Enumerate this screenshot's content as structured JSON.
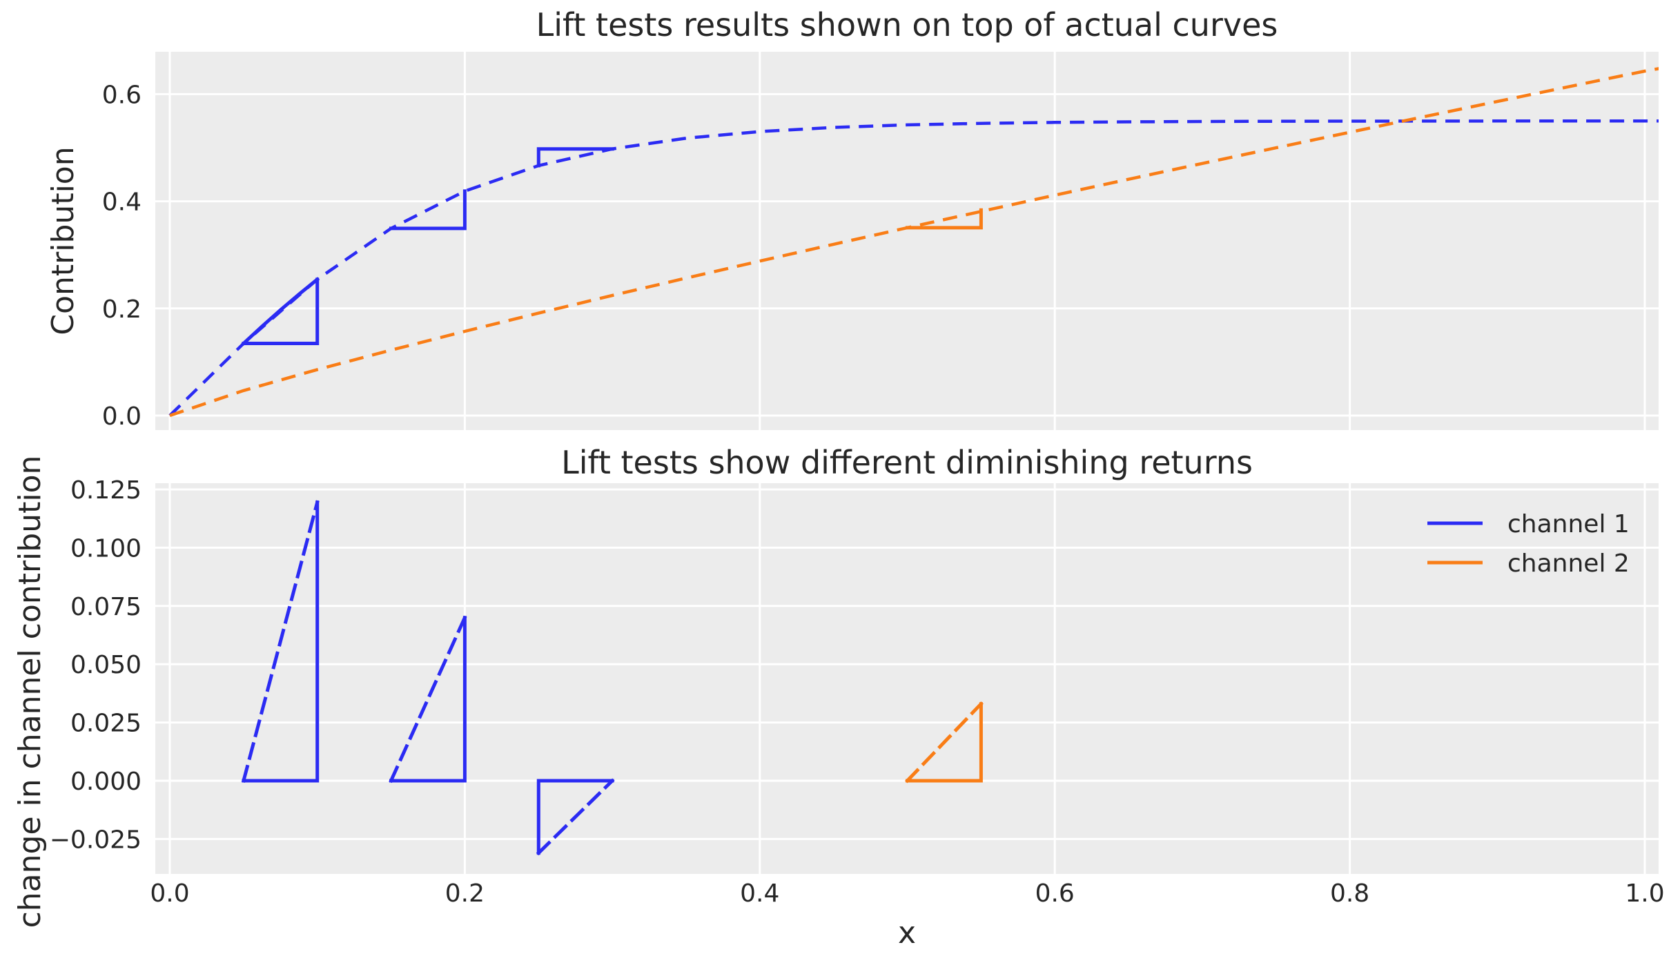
{
  "figure": {
    "background": "#ffffff",
    "axes_background": "#ececec",
    "grid_color": "#ffffff",
    "text_color": "#262626"
  },
  "colors": {
    "channel1": "#2b2bf3",
    "channel2": "#f97d16"
  },
  "xlabel": "x",
  "legend": {
    "location": "upper right of bottom subplot",
    "entries": [
      {
        "label": "channel 1",
        "color_key": "channel1"
      },
      {
        "label": "channel 2",
        "color_key": "channel2"
      }
    ]
  },
  "lift_tests": [
    {
      "channel": "channel 1",
      "x_from": 0.05,
      "x_to": 0.1,
      "measured_change": 0.119
    },
    {
      "channel": "channel 1",
      "x_from": 0.15,
      "x_to": 0.2,
      "measured_change": 0.07
    },
    {
      "channel": "channel 1",
      "x_from": 0.25,
      "x_to": 0.3,
      "measured_change": -0.031
    },
    {
      "channel": "channel 2",
      "x_from": 0.5,
      "x_to": 0.55,
      "measured_change": 0.033
    }
  ],
  "chart_data": [
    {
      "subplot": "top",
      "type": "line",
      "title": "Lift tests results shown on top of actual curves",
      "ylabel": "Contribution",
      "xlim": [
        -0.01,
        1.01
      ],
      "ylim": [
        -0.028,
        0.679
      ],
      "grid": true,
      "x_tick_labels_visible": false,
      "xticks": [
        {
          "v": 0.0,
          "l": "0.0"
        },
        {
          "v": 0.2,
          "l": "0.2"
        },
        {
          "v": 0.4,
          "l": "0.4"
        },
        {
          "v": 0.6,
          "l": "0.6"
        },
        {
          "v": 0.8,
          "l": "0.8"
        },
        {
          "v": 1.0,
          "l": "1.0"
        }
      ],
      "yticks": [
        {
          "v": 0.0,
          "l": "0.0"
        },
        {
          "v": 0.2,
          "l": "0.2"
        },
        {
          "v": 0.4,
          "l": "0.4"
        },
        {
          "v": 0.6,
          "l": "0.6"
        }
      ],
      "series": [
        {
          "name": "channel 1 curve",
          "color_key": "channel1",
          "style": "dashed",
          "formula": "y = 0.55 * tanh(5x)",
          "points": [
            [
              0,
              0
            ],
            [
              0.05,
              0.1347
            ],
            [
              0.1,
              0.2542
            ],
            [
              0.15,
              0.3493
            ],
            [
              0.2,
              0.4189
            ],
            [
              0.25,
              0.4666
            ],
            [
              0.3,
              0.4978
            ],
            [
              0.35,
              0.5178
            ],
            [
              0.4,
              0.5302
            ],
            [
              0.45,
              0.5379
            ],
            [
              0.5,
              0.5426
            ],
            [
              0.55,
              0.5455
            ],
            [
              0.6,
              0.5473
            ],
            [
              0.65,
              0.5483
            ],
            [
              0.7,
              0.549
            ],
            [
              0.75,
              0.5494
            ],
            [
              0.8,
              0.5496
            ],
            [
              0.85,
              0.5498
            ],
            [
              0.9,
              0.5499
            ],
            [
              0.95,
              0.5499
            ],
            [
              1.0,
              0.55
            ],
            [
              1.01,
              0.55
            ]
          ]
        },
        {
          "name": "channel 2 curve",
          "color_key": "channel2",
          "style": "dashed",
          "formula": "y = 0.643 * x^0.875",
          "points": [
            [
              0,
              0
            ],
            [
              0.05,
              0.0467
            ],
            [
              0.1,
              0.0858
            ],
            [
              0.15,
              0.1222
            ],
            [
              0.2,
              0.1572
            ],
            [
              0.25,
              0.1912
            ],
            [
              0.3,
              0.2242
            ],
            [
              0.35,
              0.2566
            ],
            [
              0.4,
              0.2884
            ],
            [
              0.45,
              0.3197
            ],
            [
              0.5,
              0.3506
            ],
            [
              0.55,
              0.3811
            ],
            [
              0.6,
              0.4113
            ],
            [
              0.65,
              0.4411
            ],
            [
              0.7,
              0.4706
            ],
            [
              0.75,
              0.4999
            ],
            [
              0.8,
              0.5289
            ],
            [
              0.85,
              0.5577
            ],
            [
              0.9,
              0.5864
            ],
            [
              0.95,
              0.6148
            ],
            [
              1.0,
              0.643
            ],
            [
              1.01,
              0.6479
            ]
          ]
        }
      ],
      "lift_markers": [
        {
          "color_key": "channel1",
          "style": "solid",
          "points": [
            [
              0.05,
              0.1347
            ],
            [
              0.1,
              0.1347
            ],
            [
              0.1,
              0.2542
            ]
          ]
        },
        {
          "color_key": "channel1",
          "style": "solid",
          "points": [
            [
              0.05,
              0.1347
            ],
            [
              0.0625,
              0.1665
            ],
            [
              0.075,
              0.1971
            ],
            [
              0.0875,
              0.2263
            ],
            [
              0.1,
              0.2542
            ]
          ]
        },
        {
          "color_key": "channel1",
          "style": "solid",
          "points": [
            [
              0.15,
              0.3493
            ],
            [
              0.2,
              0.3493
            ],
            [
              0.2,
              0.4189
            ]
          ]
        },
        {
          "color_key": "channel1",
          "style": "solid",
          "points": [
            [
              0.25,
              0.4666
            ],
            [
              0.25,
              0.4978
            ],
            [
              0.3,
              0.4978
            ]
          ]
        },
        {
          "color_key": "channel2",
          "style": "solid",
          "points": [
            [
              0.5,
              0.3506
            ],
            [
              0.55,
              0.3506
            ],
            [
              0.55,
              0.3836
            ]
          ]
        }
      ]
    },
    {
      "subplot": "bottom",
      "type": "line",
      "title": "Lift tests show different diminishing returns",
      "ylabel": "change in channel contribution",
      "xlim": [
        -0.01,
        1.01
      ],
      "ylim": [
        -0.04,
        0.1277
      ],
      "grid": true,
      "x_tick_labels_visible": true,
      "xticks": [
        {
          "v": 0.0,
          "l": "0.0"
        },
        {
          "v": 0.2,
          "l": "0.2"
        },
        {
          "v": 0.4,
          "l": "0.4"
        },
        {
          "v": 0.6,
          "l": "0.6"
        },
        {
          "v": 0.8,
          "l": "0.8"
        },
        {
          "v": 1.0,
          "l": "1.0"
        }
      ],
      "yticks": [
        {
          "v": -0.025,
          "l": "−0.025"
        },
        {
          "v": 0.0,
          "l": "0.000"
        },
        {
          "v": 0.025,
          "l": "0.025"
        },
        {
          "v": 0.05,
          "l": "0.050"
        },
        {
          "v": 0.075,
          "l": "0.075"
        },
        {
          "v": 0.1,
          "l": "0.100"
        },
        {
          "v": 0.125,
          "l": "0.125"
        }
      ],
      "series": [],
      "lift_markers": [
        {
          "color_key": "channel1",
          "style": "solid",
          "points": [
            [
              0.05,
              0
            ],
            [
              0.1,
              0
            ],
            [
              0.1,
              0.1195
            ]
          ]
        },
        {
          "color_key": "channel1",
          "style": "dashed",
          "points": [
            [
              0.05,
              0
            ],
            [
              0.1,
              0.1195
            ]
          ]
        },
        {
          "color_key": "channel1",
          "style": "solid",
          "points": [
            [
              0.15,
              0
            ],
            [
              0.2,
              0
            ],
            [
              0.2,
              0.07
            ]
          ]
        },
        {
          "color_key": "channel1",
          "style": "dashed",
          "points": [
            [
              0.15,
              0
            ],
            [
              0.2,
              0.07
            ]
          ]
        },
        {
          "color_key": "channel1",
          "style": "solid",
          "points": [
            [
              0.25,
              -0.031
            ],
            [
              0.25,
              0
            ],
            [
              0.3,
              0
            ]
          ]
        },
        {
          "color_key": "channel1",
          "style": "dashed",
          "points": [
            [
              0.25,
              -0.031
            ],
            [
              0.3,
              0
            ]
          ]
        },
        {
          "color_key": "channel2",
          "style": "solid",
          "points": [
            [
              0.5,
              0
            ],
            [
              0.55,
              0
            ],
            [
              0.55,
              0.033
            ]
          ]
        },
        {
          "color_key": "channel2",
          "style": "dashed",
          "points": [
            [
              0.5,
              0
            ],
            [
              0.55,
              0.033
            ]
          ]
        }
      ]
    }
  ]
}
